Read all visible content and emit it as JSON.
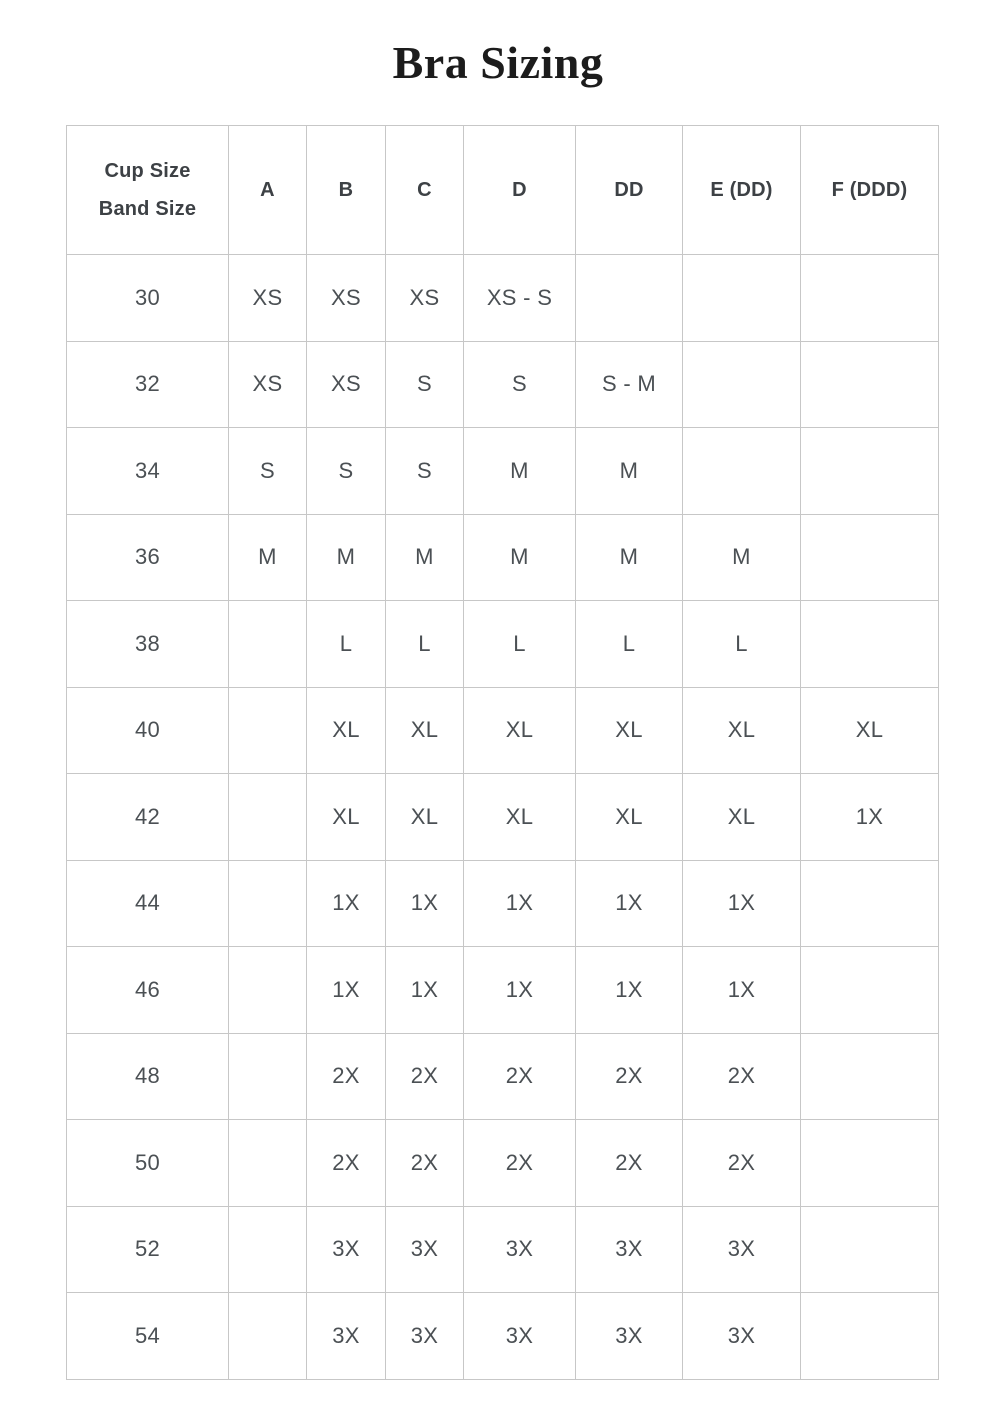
{
  "title": "Bra Sizing",
  "colors": {
    "title_text": "#1c1c1c",
    "header_text": "#3d4145",
    "cell_text": "#4b5054",
    "border": "#c7c7c7"
  },
  "chart_data": {
    "type": "table",
    "title": "Bra Sizing",
    "corner_header": [
      "Cup Size",
      "Band Size"
    ],
    "columns": [
      "A",
      "B",
      "C",
      "D",
      "DD",
      "E (DD)",
      "F (DDD)"
    ],
    "rows": [
      {
        "band": "30",
        "values": [
          "XS",
          "XS",
          "XS",
          "XS - S",
          "",
          "",
          ""
        ]
      },
      {
        "band": "32",
        "values": [
          "XS",
          "XS",
          "S",
          "S",
          "S - M",
          "",
          ""
        ]
      },
      {
        "band": "34",
        "values": [
          "S",
          "S",
          "S",
          "M",
          "M",
          "",
          ""
        ]
      },
      {
        "band": "36",
        "values": [
          "M",
          "M",
          "M",
          "M",
          "M",
          "M",
          ""
        ]
      },
      {
        "band": "38",
        "values": [
          "",
          "L",
          "L",
          "L",
          "L",
          "L",
          ""
        ]
      },
      {
        "band": "40",
        "values": [
          "",
          "XL",
          "XL",
          "XL",
          "XL",
          "XL",
          "XL"
        ]
      },
      {
        "band": "42",
        "values": [
          "",
          "XL",
          "XL",
          "XL",
          "XL",
          "XL",
          "1X"
        ]
      },
      {
        "band": "44",
        "values": [
          "",
          "1X",
          "1X",
          "1X",
          "1X",
          "1X",
          ""
        ]
      },
      {
        "band": "46",
        "values": [
          "",
          "1X",
          "1X",
          "1X",
          "1X",
          "1X",
          ""
        ]
      },
      {
        "band": "48",
        "values": [
          "",
          "2X",
          "2X",
          "2X",
          "2X",
          "2X",
          ""
        ]
      },
      {
        "band": "50",
        "values": [
          "",
          "2X",
          "2X",
          "2X",
          "2X",
          "2X",
          ""
        ]
      },
      {
        "band": "52",
        "values": [
          "",
          "3X",
          "3X",
          "3X",
          "3X",
          "3X",
          ""
        ]
      },
      {
        "band": "54",
        "values": [
          "",
          "3X",
          "3X",
          "3X",
          "3X",
          "3X",
          ""
        ]
      }
    ]
  }
}
